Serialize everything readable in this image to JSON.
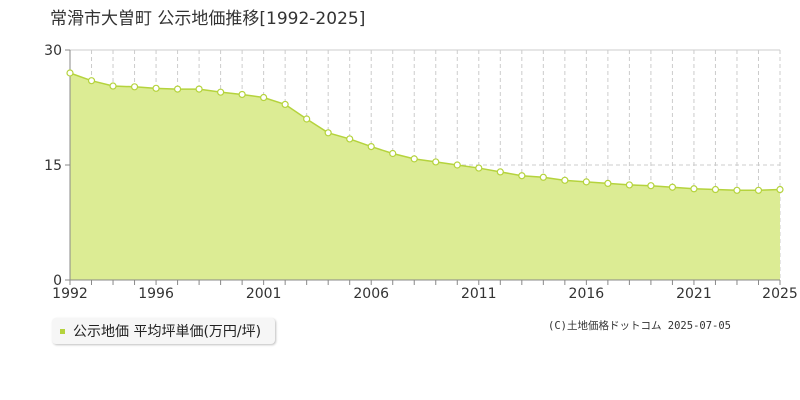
{
  "chart_data": {
    "type": "area",
    "title": "常滑市大曽町 公示地価推移[1992-2025]",
    "x": [
      1992,
      1993,
      1994,
      1995,
      1996,
      1997,
      1998,
      1999,
      2000,
      2001,
      2002,
      2003,
      2004,
      2005,
      2006,
      2007,
      2008,
      2009,
      2010,
      2011,
      2012,
      2013,
      2014,
      2015,
      2016,
      2017,
      2018,
      2019,
      2020,
      2021,
      2022,
      2023,
      2024,
      2025
    ],
    "series": [
      {
        "name": "公示地価 平均坪単価(万円/坪)",
        "values": [
          27.0,
          26.0,
          25.3,
          25.2,
          25.0,
          24.9,
          24.9,
          24.5,
          24.2,
          23.8,
          22.9,
          21.0,
          19.2,
          18.4,
          17.4,
          16.5,
          15.8,
          15.4,
          15.0,
          14.6,
          14.1,
          13.6,
          13.4,
          13.0,
          12.8,
          12.6,
          12.4,
          12.3,
          12.1,
          11.9,
          11.8,
          11.7,
          11.7,
          11.8
        ]
      }
    ],
    "ylim": [
      0,
      30
    ],
    "yticks": [
      0,
      15,
      30
    ],
    "xticks": [
      1992,
      1996,
      2001,
      2006,
      2011,
      2016,
      2021,
      2025
    ],
    "xlabel": "",
    "ylabel": "",
    "grid": true,
    "colors": {
      "fill": "#dcec94",
      "line": "#b5d33d",
      "marker_fill": "#ffffff",
      "grid": "#cccccc"
    }
  },
  "legend": {
    "label": "公示地価 平均坪単価(万円/坪)"
  },
  "credit": "(C)土地価格ドットコム 2025-07-05"
}
